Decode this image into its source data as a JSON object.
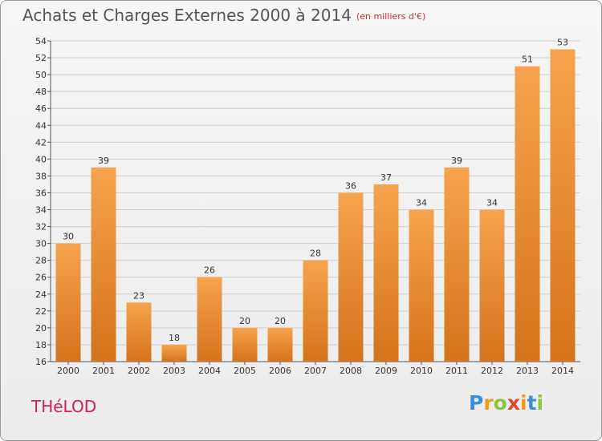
{
  "title": "Achats et Charges Externes 2000 à 2014",
  "unit": "(en milliers d'€)",
  "location": "THéLOD",
  "logo": {
    "text": "Proxiti",
    "letters": [
      "P",
      "r",
      "o",
      "x",
      "i",
      "t",
      "i"
    ],
    "colors": [
      "#3a8fd6",
      "#f29a1d",
      "#8cc63f",
      "#e8412c",
      "#f29a1d",
      "#3a8fd6",
      "#8cc63f"
    ]
  },
  "colors": {
    "bar_light": "#f7a34d",
    "bar_dark": "#d4731c",
    "title": "#555555",
    "location": "#cc2255"
  },
  "chart_data": {
    "type": "bar",
    "title": "Achats et Charges Externes 2000 à 2014",
    "categories": [
      "2000",
      "2001",
      "2002",
      "2003",
      "2004",
      "2005",
      "2006",
      "2007",
      "2008",
      "2009",
      "2010",
      "2011",
      "2012",
      "2013",
      "2014"
    ],
    "values": [
      30,
      39,
      23,
      18,
      26,
      20,
      20,
      28,
      36,
      37,
      34,
      39,
      34,
      51,
      53
    ],
    "ylim": [
      16,
      54
    ],
    "yticks": [
      16,
      18,
      20,
      22,
      24,
      26,
      28,
      30,
      32,
      34,
      36,
      38,
      40,
      42,
      44,
      46,
      48,
      50,
      52,
      54
    ],
    "grid": true,
    "xlabel": "",
    "ylabel": ""
  }
}
